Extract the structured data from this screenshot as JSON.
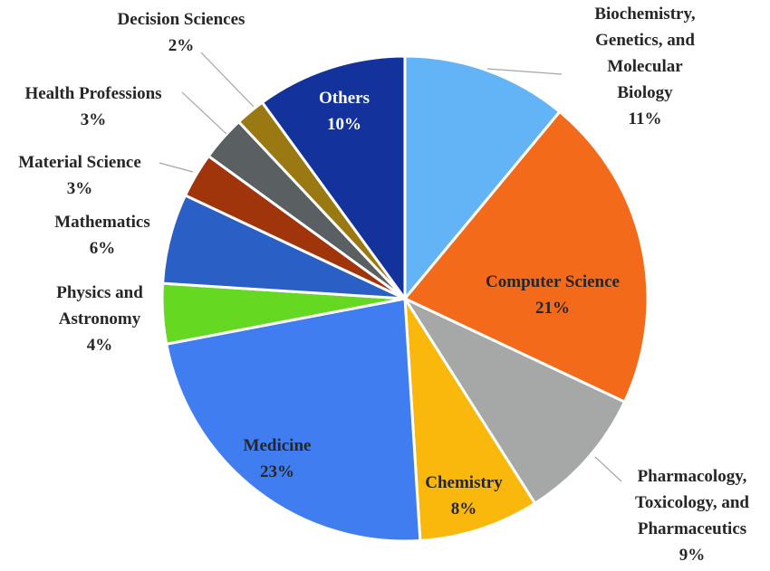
{
  "chart_data": {
    "type": "pie",
    "title": "",
    "slices": [
      {
        "label": "Biochemistry, Genetics, and Molecular Biology",
        "value": 11,
        "value_label": "11%",
        "label_lines": [
          "Biochemistry,",
          "Genetics, and",
          "Molecular",
          "Biology"
        ],
        "color": "#63b4f7"
      },
      {
        "label": "Computer Science",
        "value": 21,
        "value_label": "21%",
        "label_lines": [
          "Computer Science"
        ],
        "color": "#f46a1b"
      },
      {
        "label": "Pharmacology, Toxicology, and Pharmaceutics",
        "value": 9,
        "value_label": "9%",
        "label_lines": [
          "Pharmacology,",
          "Toxicology, and",
          "Pharmaceutics"
        ],
        "color": "#a5a8a6"
      },
      {
        "label": "Chemistry",
        "value": 8,
        "value_label": "8%",
        "label_lines": [
          "Chemistry"
        ],
        "color": "#fbb80c"
      },
      {
        "label": "Medicine",
        "value": 23,
        "value_label": "23%",
        "label_lines": [
          "Medicine"
        ],
        "color": "#3f7df1"
      },
      {
        "label": "Physics and Astronomy",
        "value": 4,
        "value_label": "4%",
        "label_lines": [
          "Physics and",
          "Astronomy"
        ],
        "color": "#65d921"
      },
      {
        "label": "Mathematics",
        "value": 6,
        "value_label": "6%",
        "label_lines": [
          "Mathematics"
        ],
        "color": "#2a5fc6"
      },
      {
        "label": "Material Science",
        "value": 3,
        "value_label": "3%",
        "label_lines": [
          "Material Science"
        ],
        "color": "#a0340b"
      },
      {
        "label": "Health Professions",
        "value": 3,
        "value_label": "3%",
        "label_lines": [
          "Health Professions"
        ],
        "color": "#5a5f61"
      },
      {
        "label": "Decision Sciences",
        "value": 2,
        "value_label": "2%",
        "label_lines": [
          "Decision Sciences"
        ],
        "color": "#9a7812"
      },
      {
        "label": "Others",
        "value": 10,
        "value_label": "10%",
        "label_lines": [
          "Others"
        ],
        "color": "#13329c"
      }
    ],
    "legend": "none"
  }
}
